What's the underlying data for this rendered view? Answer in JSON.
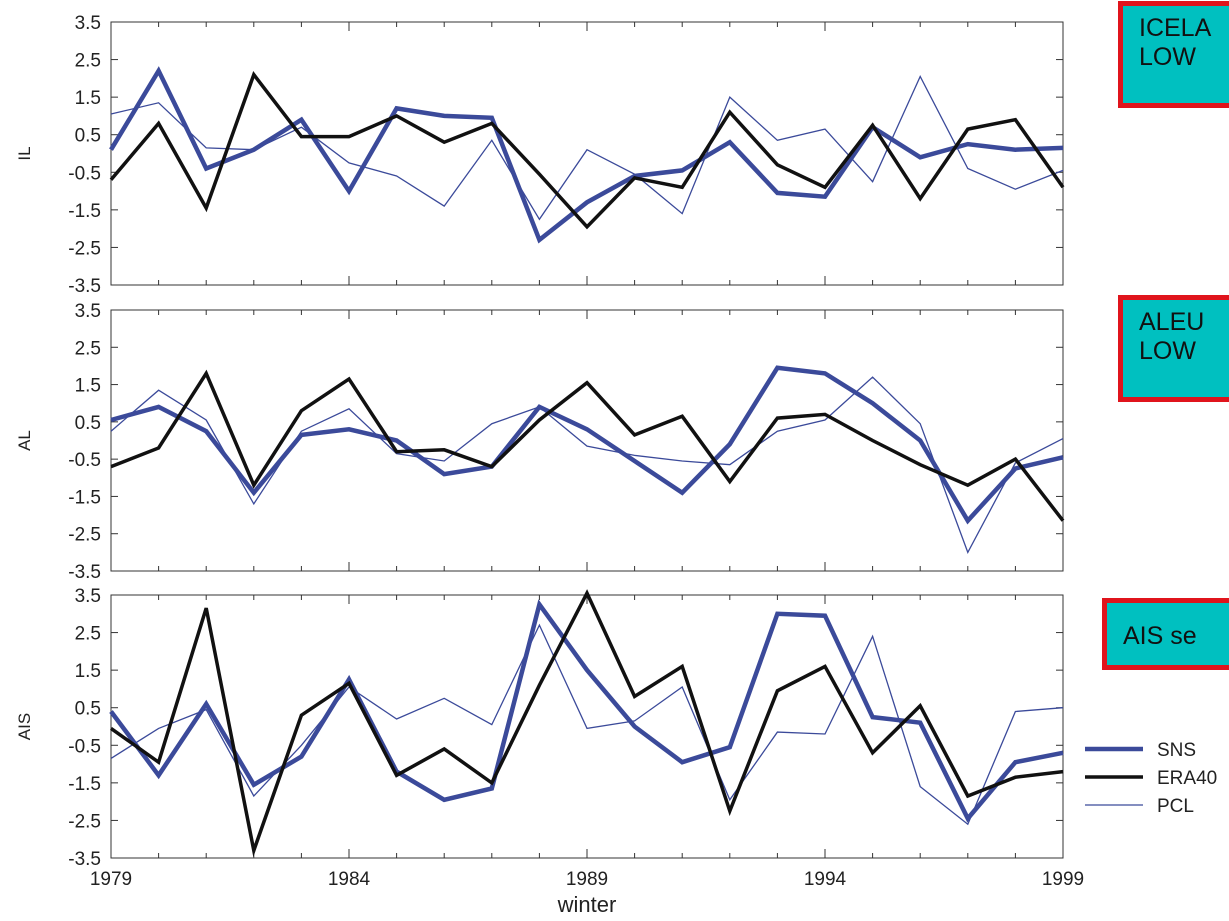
{
  "colors": {
    "SNS": "#3b4a9a",
    "ERA40": "#111111",
    "PCL": "#3b4a9a",
    "callout_bg": "#00c0c0",
    "callout_border": "#e0141c"
  },
  "callouts": {
    "il": "ICELA\nLOW",
    "al": "ALEU\nLOW",
    "ais": "AIS se"
  },
  "chart_data": [
    {
      "type": "line",
      "panel": "top",
      "xlabel": "",
      "ylabel": "IL",
      "ylim": [
        -3.5,
        3.5
      ],
      "yticks": [
        "3.5",
        "2.5",
        "1.5",
        "0.5",
        "-0.5",
        "-1.5",
        "-2.5",
        "-3.5"
      ],
      "x": [
        1979,
        1980,
        1981,
        1982,
        1983,
        1984,
        1985,
        1986,
        1987,
        1988,
        1989,
        1990,
        1991,
        1992,
        1993,
        1994,
        1995,
        1996,
        1997,
        1998,
        1999
      ],
      "series": [
        {
          "name": "SNS",
          "values": [
            0.1,
            2.2,
            -0.4,
            0.1,
            0.9,
            -1.0,
            1.2,
            1.0,
            0.95,
            -2.3,
            -1.3,
            -0.6,
            -0.45,
            0.3,
            -1.05,
            -1.15,
            0.7,
            -0.1,
            0.25,
            0.1,
            0.15
          ]
        },
        {
          "name": "ERA40",
          "values": [
            -0.7,
            0.8,
            -1.45,
            2.1,
            0.45,
            0.45,
            1.0,
            0.3,
            0.8,
            -0.55,
            -1.95,
            -0.65,
            -0.9,
            1.1,
            -0.3,
            -0.9,
            0.75,
            -1.2,
            0.65,
            0.9,
            -0.9
          ]
        },
        {
          "name": "PCL",
          "values": [
            1.05,
            1.35,
            0.15,
            0.1,
            0.7,
            -0.25,
            -0.6,
            -1.4,
            0.35,
            -1.75,
            0.1,
            -0.55,
            -1.6,
            1.5,
            0.35,
            0.65,
            -0.75,
            2.05,
            -0.4,
            -0.95,
            -0.45
          ]
        }
      ]
    },
    {
      "type": "line",
      "panel": "middle",
      "xlabel": "",
      "ylabel": "AL",
      "ylim": [
        -3.5,
        3.5
      ],
      "yticks": [
        "3.5",
        "2.5",
        "1.5",
        "0.5",
        "-0.5",
        "-1.5",
        "-2.5",
        "-3.5"
      ],
      "x": [
        1979,
        1980,
        1981,
        1982,
        1983,
        1984,
        1985,
        1986,
        1987,
        1988,
        1989,
        1990,
        1991,
        1992,
        1993,
        1994,
        1995,
        1996,
        1997,
        1998,
        1999
      ],
      "series": [
        {
          "name": "SNS",
          "values": [
            0.55,
            0.9,
            0.25,
            -1.4,
            0.15,
            0.3,
            0.0,
            -0.9,
            -0.7,
            0.9,
            0.3,
            -0.55,
            -1.4,
            -0.1,
            1.95,
            1.8,
            1.0,
            0.0,
            -2.15,
            -0.75,
            -0.45
          ]
        },
        {
          "name": "ERA40",
          "values": [
            -0.7,
            -0.2,
            1.8,
            -1.2,
            0.8,
            1.65,
            -0.3,
            -0.25,
            -0.7,
            0.55,
            1.55,
            0.15,
            0.65,
            -1.1,
            0.6,
            0.7,
            0.0,
            -0.65,
            -1.2,
            -0.5,
            -2.15
          ]
        },
        {
          "name": "PCL",
          "values": [
            0.25,
            1.35,
            0.55,
            -1.7,
            0.25,
            0.85,
            -0.35,
            -0.55,
            0.45,
            0.9,
            -0.15,
            -0.4,
            -0.55,
            -0.65,
            0.25,
            0.55,
            1.7,
            0.45,
            -3.0,
            -0.6,
            0.05
          ]
        }
      ]
    },
    {
      "type": "line",
      "panel": "bottom",
      "xlabel": "winter",
      "ylabel": "AIS",
      "ylim": [
        -3.5,
        3.5
      ],
      "yticks": [
        "3.5",
        "2.5",
        "1.5",
        "0.5",
        "-0.5",
        "-1.5",
        "-2.5",
        "-3.5"
      ],
      "xticks": [
        "1979",
        "1984",
        "1989",
        "1994",
        "1999"
      ],
      "x": [
        1979,
        1980,
        1981,
        1982,
        1983,
        1984,
        1985,
        1986,
        1987,
        1988,
        1989,
        1990,
        1991,
        1992,
        1993,
        1994,
        1995,
        1996,
        1997,
        1998,
        1999
      ],
      "series": [
        {
          "name": "SNS",
          "values": [
            0.4,
            -1.3,
            0.6,
            -1.55,
            -0.8,
            1.25,
            -1.2,
            -1.95,
            -1.65,
            3.25,
            1.5,
            0.0,
            -0.95,
            -0.55,
            3.0,
            2.95,
            0.25,
            0.1,
            -2.45,
            -0.95,
            -0.7
          ]
        },
        {
          "name": "ERA40",
          "values": [
            -0.05,
            -0.95,
            3.15,
            -3.3,
            0.3,
            1.15,
            -1.3,
            -0.6,
            -1.5,
            1.1,
            3.55,
            0.8,
            1.6,
            -2.25,
            0.95,
            1.6,
            -0.7,
            0.55,
            -1.85,
            -1.35,
            -1.2
          ]
        },
        {
          "name": "PCL",
          "values": [
            -0.85,
            -0.05,
            0.45,
            -1.85,
            -0.5,
            1.05,
            0.2,
            0.75,
            0.05,
            2.7,
            -0.05,
            0.15,
            1.05,
            -1.95,
            -0.15,
            -0.2,
            2.4,
            -1.6,
            -2.6,
            0.4,
            0.5
          ]
        }
      ]
    }
  ],
  "legend": [
    {
      "name": "SNS",
      "label": "SNS"
    },
    {
      "name": "ERA40",
      "label": "ERA40"
    },
    {
      "name": "PCL",
      "label": "PCL"
    }
  ]
}
